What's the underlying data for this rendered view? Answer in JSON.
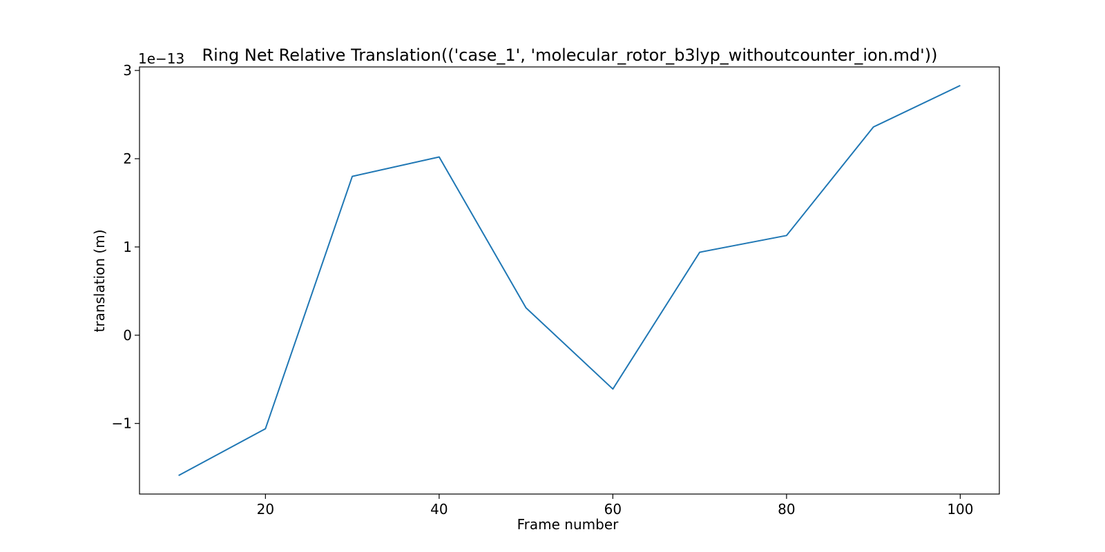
{
  "chart_data": {
    "type": "line",
    "title": "Ring Net Relative Translation(('case_1', 'molecular_rotor_b3lyp_withoutcounter_ion.md'))",
    "xlabel": "Frame number",
    "ylabel": "translation (m)",
    "y_offset_label": "1e−13",
    "x": [
      10,
      20,
      30,
      40,
      50,
      60,
      70,
      80,
      90,
      100
    ],
    "series": [
      {
        "values": [
          -1.59,
          -1.06,
          1.8,
          2.02,
          0.31,
          -0.61,
          0.94,
          1.13,
          2.36,
          2.83
        ],
        "color": "#1f77b4"
      }
    ],
    "xlim": [
      5.5,
      104.5
    ],
    "ylim": [
      -1.8,
      3.04
    ],
    "x_ticks": [
      {
        "value": 20,
        "label": "20"
      },
      {
        "value": 40,
        "label": "40"
      },
      {
        "value": 60,
        "label": "60"
      },
      {
        "value": 80,
        "label": "80"
      },
      {
        "value": 100,
        "label": "100"
      }
    ],
    "y_ticks": [
      {
        "value": -1,
        "label": "−1"
      },
      {
        "value": 0,
        "label": "0"
      },
      {
        "value": 1,
        "label": "1"
      },
      {
        "value": 2,
        "label": "2"
      },
      {
        "value": 3,
        "label": "3"
      }
    ],
    "grid": false,
    "legend": "none"
  }
}
